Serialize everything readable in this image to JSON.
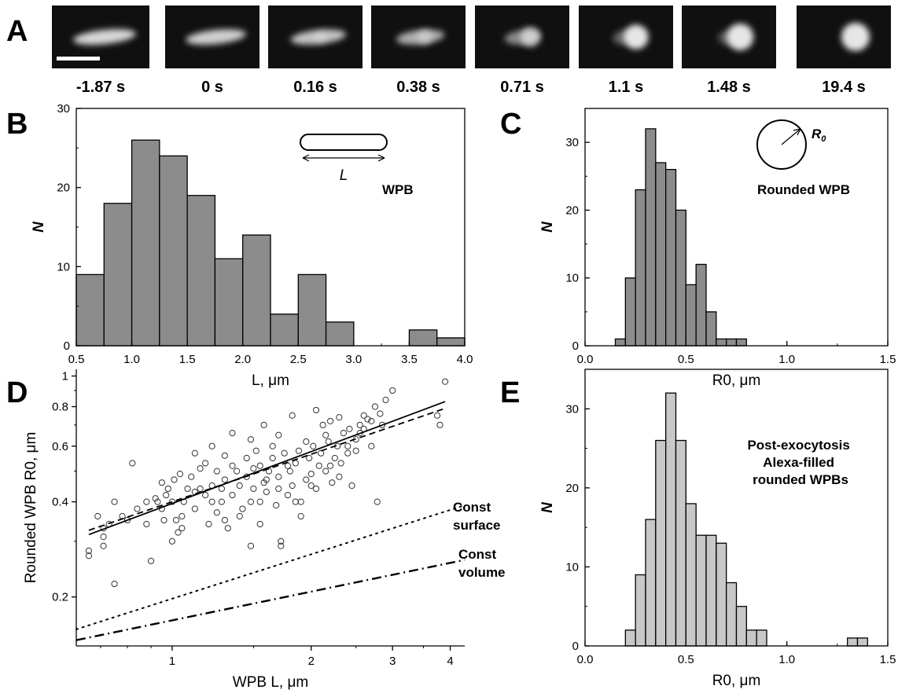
{
  "panels": {
    "A": {
      "label": "A",
      "frames": [
        "-1.87 s",
        "0 s",
        "0.16 s",
        "0.38 s",
        "0.71 s",
        "1.1 s",
        "1.48 s",
        "19.4 s"
      ],
      "frame_stage": [
        0,
        0.05,
        0.15,
        0.3,
        0.55,
        0.8,
        0.92,
        1.0
      ]
    },
    "B": {
      "label": "B",
      "inset_symbol": "L",
      "inset_caption": "WPB"
    },
    "C": {
      "label": "C",
      "inset_symbol": "R",
      "inset_subscript": "0",
      "inset_caption": "Rounded WPB"
    },
    "D": {
      "label": "D",
      "curve_label_surface": [
        "Const",
        "surface"
      ],
      "curve_label_volume": [
        "Const",
        "volume"
      ]
    },
    "E": {
      "label": "E",
      "annotation": [
        "Post-exocytosis",
        "Alexa-filled",
        "rounded WPBs"
      ]
    }
  },
  "chart_data": [
    {
      "panel": "B",
      "type": "bar",
      "bin_edges": [
        0.5,
        0.75,
        1.0,
        1.25,
        1.5,
        1.75,
        2.0,
        2.25,
        2.5,
        2.75,
        3.0,
        3.25,
        3.5,
        3.75,
        4.0
      ],
      "values": [
        9,
        18,
        26,
        24,
        19,
        11,
        14,
        4,
        9,
        3,
        0,
        0,
        2,
        1
      ],
      "xlim": [
        0.5,
        4.0
      ],
      "ylim": [
        0,
        30
      ],
      "xticks": [
        "0.5",
        "1.0",
        "1.5",
        "2.0",
        "2.5",
        "3.0",
        "3.5",
        "4.0"
      ],
      "yticks": [
        "0",
        "10",
        "20",
        "30"
      ],
      "xlabel": "L, μm",
      "ylabel": "N",
      "color": "#8c8c8c"
    },
    {
      "panel": "C",
      "type": "bar",
      "bin_edges": [
        0.15,
        0.2,
        0.25,
        0.3,
        0.35,
        0.4,
        0.45,
        0.5,
        0.55,
        0.6,
        0.65,
        0.7,
        0.75,
        0.8,
        0.85,
        0.9,
        0.95,
        1.0
      ],
      "values": [
        1,
        10,
        23,
        32,
        27,
        26,
        20,
        9,
        12,
        5,
        1,
        1,
        1,
        0,
        0,
        0,
        0
      ],
      "xlim": [
        0.0,
        1.5
      ],
      "ylim": [
        0,
        35
      ],
      "xticks": [
        "0.0",
        "0.5",
        "1.0",
        "1.5"
      ],
      "yticks": [
        "0",
        "10",
        "20",
        "30"
      ],
      "xlabel": "R0, μm",
      "ylabel": "N",
      "color": "#8c8c8c"
    },
    {
      "panel": "D",
      "type": "scatter",
      "xscale": "log",
      "yscale": "log",
      "xlim": [
        0.62,
        4.3
      ],
      "ylim": [
        0.14,
        1.05
      ],
      "xticks": [
        "1",
        "2",
        "3",
        "4"
      ],
      "yticks": [
        "0.2",
        "0.4",
        "0.6",
        "0.8",
        "1"
      ],
      "xlabel": "WPB L, μm",
      "ylabel": "Rounded WPB R0, μm",
      "points": [
        [
          0.66,
          0.27
        ],
        [
          0.66,
          0.28
        ],
        [
          0.69,
          0.36
        ],
        [
          0.71,
          0.29
        ],
        [
          0.71,
          0.31
        ],
        [
          0.71,
          0.33
        ],
        [
          0.73,
          0.34
        ],
        [
          0.75,
          0.22
        ],
        [
          0.75,
          0.4
        ],
        [
          0.78,
          0.36
        ],
        [
          0.8,
          0.35
        ],
        [
          0.82,
          0.53
        ],
        [
          0.84,
          0.38
        ],
        [
          0.88,
          0.4
        ],
        [
          0.9,
          0.26
        ],
        [
          0.92,
          0.41
        ],
        [
          0.93,
          0.4
        ],
        [
          0.95,
          0.46
        ],
        [
          0.96,
          0.35
        ],
        [
          0.97,
          0.42
        ],
        [
          0.98,
          0.44
        ],
        [
          1.0,
          0.3
        ],
        [
          1.0,
          0.4
        ],
        [
          1.01,
          0.47
        ],
        [
          1.02,
          0.35
        ],
        [
          1.03,
          0.32
        ],
        [
          1.05,
          0.33
        ],
        [
          1.06,
          0.4
        ],
        [
          1.08,
          0.44
        ],
        [
          1.1,
          0.48
        ],
        [
          1.12,
          0.38
        ],
        [
          1.12,
          0.43
        ],
        [
          1.15,
          0.51
        ],
        [
          1.18,
          0.42
        ],
        [
          1.2,
          0.34
        ],
        [
          1.22,
          0.4
        ],
        [
          1.22,
          0.45
        ],
        [
          1.25,
          0.5
        ],
        [
          1.25,
          0.37
        ],
        [
          1.28,
          0.44
        ],
        [
          1.3,
          0.56
        ],
        [
          1.3,
          0.47
        ],
        [
          1.32,
          0.33
        ],
        [
          1.35,
          0.42
        ],
        [
          1.35,
          0.52
        ],
        [
          1.4,
          0.45
        ],
        [
          1.42,
          0.38
        ],
        [
          1.45,
          0.48
        ],
        [
          1.45,
          0.55
        ],
        [
          1.48,
          0.29
        ],
        [
          1.5,
          0.44
        ],
        [
          1.5,
          0.51
        ],
        [
          1.52,
          0.58
        ],
        [
          1.55,
          0.4
        ],
        [
          1.58,
          0.46
        ],
        [
          1.6,
          0.43
        ],
        [
          1.62,
          0.5
        ],
        [
          1.65,
          0.55
        ],
        [
          1.68,
          0.39
        ],
        [
          1.7,
          0.48
        ],
        [
          1.72,
          0.3
        ],
        [
          1.72,
          0.29
        ],
        [
          1.75,
          0.57
        ],
        [
          1.78,
          0.42
        ],
        [
          1.8,
          0.5
        ],
        [
          1.82,
          0.45
        ],
        [
          1.85,
          0.53
        ],
        [
          1.88,
          0.58
        ],
        [
          1.9,
          0.4
        ],
        [
          1.95,
          0.47
        ],
        [
          1.98,
          0.55
        ],
        [
          2.0,
          0.49
        ],
        [
          2.02,
          0.6
        ],
        [
          2.05,
          0.44
        ],
        [
          2.08,
          0.52
        ],
        [
          2.1,
          0.57
        ],
        [
          2.15,
          0.5
        ],
        [
          2.18,
          0.62
        ],
        [
          2.22,
          0.46
        ],
        [
          2.25,
          0.55
        ],
        [
          2.28,
          0.6
        ],
        [
          2.32,
          0.53
        ],
        [
          2.35,
          0.66
        ],
        [
          2.4,
          0.57
        ],
        [
          2.45,
          0.45
        ],
        [
          2.5,
          0.63
        ],
        [
          2.55,
          0.7
        ],
        [
          2.6,
          0.75
        ],
        [
          2.65,
          0.73
        ],
        [
          2.7,
          0.6
        ],
        [
          2.75,
          0.8
        ],
        [
          2.78,
          0.4
        ],
        [
          2.82,
          0.76
        ],
        [
          2.9,
          0.84
        ],
        [
          3.0,
          0.9
        ],
        [
          1.48,
          0.63
        ],
        [
          1.58,
          0.7
        ],
        [
          1.7,
          0.65
        ],
        [
          1.82,
          0.75
        ],
        [
          2.05,
          0.78
        ],
        [
          2.12,
          0.7
        ],
        [
          2.3,
          0.74
        ],
        [
          2.42,
          0.68
        ],
        [
          1.35,
          0.66
        ],
        [
          1.22,
          0.6
        ],
        [
          1.12,
          0.57
        ],
        [
          1.4,
          0.36
        ],
        [
          1.55,
          0.34
        ],
        [
          1.9,
          0.36
        ],
        [
          2.2,
          0.72
        ],
        [
          2.4,
          0.6
        ],
        [
          2.6,
          0.68
        ],
        [
          2.85,
          0.7
        ],
        [
          3.75,
          0.75
        ],
        [
          3.8,
          0.7
        ],
        [
          3.9,
          0.96
        ],
        [
          0.88,
          0.34
        ],
        [
          0.95,
          0.38
        ],
        [
          1.05,
          0.36
        ],
        [
          1.28,
          0.4
        ],
        [
          1.6,
          0.47
        ],
        [
          1.78,
          0.52
        ],
        [
          2.0,
          0.45
        ],
        [
          2.2,
          0.52
        ],
        [
          2.5,
          0.58
        ],
        [
          1.3,
          0.35
        ],
        [
          1.15,
          0.44
        ],
        [
          1.48,
          0.4
        ],
        [
          1.65,
          0.6
        ],
        [
          1.95,
          0.62
        ],
        [
          1.04,
          0.49
        ],
        [
          1.18,
          0.53
        ],
        [
          1.38,
          0.5
        ],
        [
          1.55,
          0.52
        ],
        [
          1.7,
          0.44
        ],
        [
          1.85,
          0.4
        ],
        [
          2.15,
          0.65
        ],
        [
          2.3,
          0.48
        ],
        [
          2.55,
          0.66
        ],
        [
          2.7,
          0.72
        ]
      ],
      "fit_line": [
        [
          0.66,
          0.315
        ],
        [
          3.9,
          0.83
        ]
      ],
      "dashed_line": [
        [
          0.66,
          0.325
        ],
        [
          3.9,
          0.79
        ]
      ],
      "const_surface": [
        [
          0.62,
          0.158
        ],
        [
          4.3,
          0.39
        ]
      ],
      "const_volume": [
        [
          0.62,
          0.146
        ],
        [
          4.3,
          0.262
        ]
      ]
    },
    {
      "panel": "E",
      "type": "bar",
      "bin_edges": [
        0.2,
        0.25,
        0.3,
        0.35,
        0.4,
        0.45,
        0.5,
        0.55,
        0.6,
        0.65,
        0.7,
        0.75,
        0.8,
        0.85,
        0.9,
        0.95,
        1.0,
        1.05,
        1.1,
        1.15,
        1.2,
        1.25,
        1.3,
        1.35,
        1.4,
        1.45,
        1.5
      ],
      "values": [
        2,
        9,
        16,
        26,
        32,
        26,
        18,
        14,
        14,
        13,
        8,
        5,
        2,
        2,
        0,
        0,
        0,
        0,
        0,
        0,
        0,
        0,
        1,
        1,
        0,
        0
      ],
      "xlim": [
        0.0,
        1.5
      ],
      "ylim": [
        0,
        35
      ],
      "xticks": [
        "0.0",
        "0.5",
        "1.0",
        "1.5"
      ],
      "yticks": [
        "0",
        "10",
        "20",
        "30"
      ],
      "xlabel": "R0, μm",
      "ylabel": "N",
      "color": "#c8c8c8"
    }
  ]
}
